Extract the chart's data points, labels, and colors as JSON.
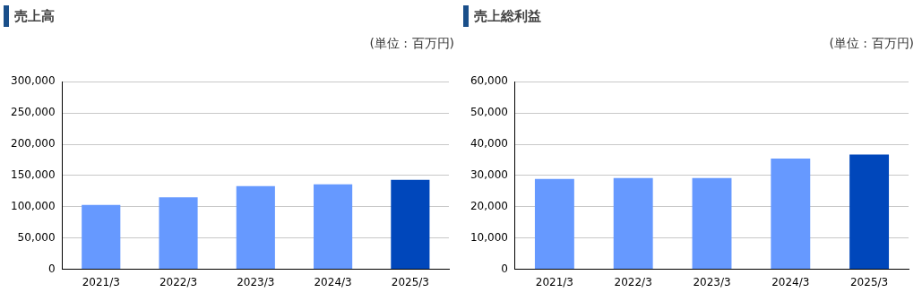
{
  "chart_data": [
    {
      "type": "bar",
      "title": "売上高",
      "annotations": [
        "(単位 : 百万円)"
      ],
      "categories": [
        "2021/3",
        "2022/3",
        "2023/3",
        "2024/3",
        "2025/3"
      ],
      "values": [
        103000,
        115000,
        133000,
        136000,
        143000
      ],
      "colors": [
        "#6699ff",
        "#6699ff",
        "#6699ff",
        "#6699ff",
        "#0047bb"
      ],
      "ylim": [
        0,
        300000
      ],
      "yticks": [
        0,
        {
          "value": 50000,
          "label": "50,000"
        },
        {
          "value": 100000,
          "label": "100,000"
        },
        {
          "value": 150000,
          "label": "150,000"
        },
        {
          "value": 200000,
          "label": "200,000"
        },
        {
          "value": 250000,
          "label": "250,000"
        },
        {
          "value": 300000,
          "label": "300,000"
        }
      ],
      "grid": "y",
      "legend": false
    },
    {
      "type": "bar",
      "title": "売上総利益",
      "annotations": [
        "(単位 : 百万円)"
      ],
      "categories": [
        "2021/3",
        "2022/3",
        "2023/3",
        "2024/3",
        "2025/3"
      ],
      "values": [
        28900,
        29200,
        29200,
        35400,
        36700
      ],
      "colors": [
        "#6699ff",
        "#6699ff",
        "#6699ff",
        "#6699ff",
        "#0047bb"
      ],
      "ylim": [
        0,
        60000
      ],
      "yticks": [
        0,
        {
          "value": 10000,
          "label": "10,000"
        },
        {
          "value": 20000,
          "label": "20,000"
        },
        {
          "value": 30000,
          "label": "30,000"
        },
        {
          "value": 40000,
          "label": "40,000"
        },
        {
          "value": 50000,
          "label": "50,000"
        },
        {
          "value": 60000,
          "label": "60,000"
        }
      ],
      "grid": "y",
      "legend": false
    }
  ]
}
